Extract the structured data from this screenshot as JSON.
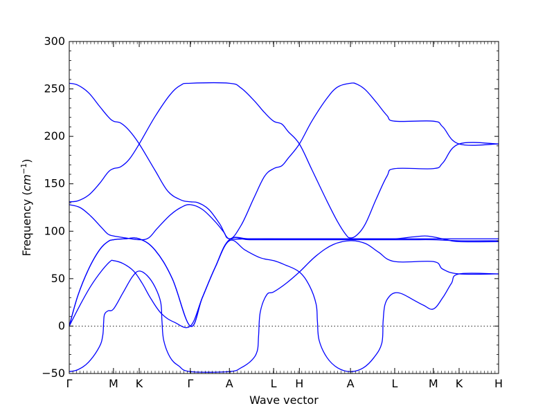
{
  "chart_data": {
    "type": "line",
    "title": "",
    "xlabel": "Wave vector",
    "ylabel": "Frequency (cm⁻¹)",
    "ylabel_prefix": "Frequency (",
    "ylabel_unit": "cm",
    "ylabel_exp": "−1",
    "ylabel_suffix": ")",
    "ylim": [
      -50,
      300
    ],
    "xlim": [
      0,
      1
    ],
    "grid": false,
    "legend": "none",
    "line_color": "#0000ff",
    "y_ticks": [
      -50,
      0,
      50,
      100,
      150,
      200,
      250,
      300
    ],
    "x_ticks": [
      {
        "x": 0.0,
        "label": "Γ"
      },
      {
        "x": 0.103,
        "label": "M"
      },
      {
        "x": 0.163,
        "label": "K"
      },
      {
        "x": 0.282,
        "label": "Γ"
      },
      {
        "x": 0.373,
        "label": "A"
      },
      {
        "x": 0.476,
        "label": "L"
      },
      {
        "x": 0.536,
        "label": "H"
      },
      {
        "x": 0.655,
        "label": "A"
      },
      {
        "x": 0.758,
        "label": "L"
      },
      {
        "x": 0.848,
        "label": "M"
      },
      {
        "x": 0.908,
        "label": "K"
      },
      {
        "x": 1.0,
        "label": "H"
      }
    ],
    "series": [
      {
        "values": [
          [
            0,
            -48
          ],
          [
            0.02,
            -46
          ],
          [
            0.045,
            -38
          ],
          [
            0.07,
            -22
          ],
          [
            0.078,
            -10
          ],
          [
            0.08,
            3
          ],
          [
            0.082,
            12
          ],
          [
            0.09,
            16
          ],
          [
            0.103,
            18
          ],
          [
            0.125,
            35
          ],
          [
            0.147,
            52
          ],
          [
            0.163,
            58
          ],
          [
            0.182,
            53
          ],
          [
            0.2,
            41
          ],
          [
            0.213,
            25
          ],
          [
            0.216,
            5
          ],
          [
            0.22,
            -15
          ],
          [
            0.235,
            -33
          ],
          [
            0.255,
            -42
          ],
          [
            0.282,
            -48
          ],
          [
            0.373,
            -48
          ],
          [
            0.4,
            -44
          ],
          [
            0.425,
            -36
          ],
          [
            0.438,
            -26
          ],
          [
            0.441,
            -10
          ],
          [
            0.445,
            15
          ],
          [
            0.46,
            33
          ],
          [
            0.476,
            36
          ],
          [
            0.505,
            45
          ],
          [
            0.536,
            57
          ],
          [
            0.575,
            74
          ],
          [
            0.615,
            86
          ],
          [
            0.655,
            90
          ],
          [
            0.69,
            87
          ],
          [
            0.72,
            78
          ],
          [
            0.758,
            68
          ],
          [
            0.848,
            68
          ],
          [
            0.87,
            60
          ],
          [
            0.908,
            55
          ],
          [
            1.0,
            55
          ]
        ]
      },
      {
        "values": [
          [
            0,
            0
          ],
          [
            0.025,
            22
          ],
          [
            0.05,
            42
          ],
          [
            0.075,
            58
          ],
          [
            0.095,
            68
          ],
          [
            0.103,
            69
          ],
          [
            0.125,
            66
          ],
          [
            0.15,
            58
          ],
          [
            0.17,
            45
          ],
          [
            0.19,
            29
          ],
          [
            0.215,
            13
          ],
          [
            0.245,
            4
          ],
          [
            0.282,
            0
          ],
          [
            0.31,
            30
          ],
          [
            0.34,
            62
          ],
          [
            0.373,
            90
          ],
          [
            0.41,
            80
          ],
          [
            0.445,
            72
          ],
          [
            0.476,
            69
          ],
          [
            0.5,
            65
          ],
          [
            0.536,
            57
          ],
          [
            0.56,
            42
          ],
          [
            0.575,
            23
          ],
          [
            0.578,
            5
          ],
          [
            0.582,
            -15
          ],
          [
            0.6,
            -33
          ],
          [
            0.625,
            -44
          ],
          [
            0.655,
            -48
          ],
          [
            0.685,
            -44
          ],
          [
            0.71,
            -33
          ],
          [
            0.728,
            -18
          ],
          [
            0.731,
            5
          ],
          [
            0.735,
            22
          ],
          [
            0.745,
            31
          ],
          [
            0.758,
            35
          ],
          [
            0.775,
            34
          ],
          [
            0.8,
            28
          ],
          [
            0.825,
            22
          ],
          [
            0.848,
            18
          ],
          [
            0.87,
            30
          ],
          [
            0.89,
            45
          ],
          [
            0.908,
            55
          ],
          [
            1.0,
            55
          ]
        ]
      },
      {
        "values": [
          [
            0,
            0
          ],
          [
            0.02,
            32
          ],
          [
            0.045,
            60
          ],
          [
            0.07,
            80
          ],
          [
            0.09,
            89
          ],
          [
            0.103,
            91
          ],
          [
            0.13,
            92
          ],
          [
            0.163,
            92
          ],
          [
            0.2,
            80
          ],
          [
            0.24,
            50
          ],
          [
            0.282,
            0
          ],
          [
            0.31,
            30
          ],
          [
            0.34,
            62
          ],
          [
            0.373,
            91
          ],
          [
            0.42,
            91
          ],
          [
            0.5,
            91
          ],
          [
            0.6,
            91
          ],
          [
            0.7,
            91
          ],
          [
            0.758,
            91
          ],
          [
            0.8,
            91
          ],
          [
            0.848,
            91
          ],
          [
            0.908,
            90
          ],
          [
            1.0,
            90
          ]
        ]
      },
      {
        "values": [
          [
            0,
            0
          ],
          [
            0.02,
            32
          ],
          [
            0.045,
            60
          ],
          [
            0.07,
            80
          ],
          [
            0.09,
            89
          ],
          [
            0.103,
            91
          ],
          [
            0.13,
            92
          ],
          [
            0.163,
            92
          ],
          [
            0.2,
            80
          ],
          [
            0.24,
            50
          ],
          [
            0.282,
            0
          ],
          [
            0.31,
            30
          ],
          [
            0.34,
            62
          ],
          [
            0.373,
            91
          ],
          [
            0.42,
            92
          ],
          [
            0.5,
            92
          ],
          [
            0.6,
            92
          ],
          [
            0.7,
            92
          ],
          [
            0.758,
            92
          ],
          [
            0.8,
            92
          ],
          [
            0.848,
            92
          ],
          [
            0.908,
            92
          ],
          [
            1.0,
            92
          ]
        ]
      },
      {
        "values": [
          [
            0,
            128
          ],
          [
            0.025,
            125
          ],
          [
            0.05,
            116
          ],
          [
            0.075,
            104
          ],
          [
            0.09,
            97
          ],
          [
            0.103,
            95
          ],
          [
            0.13,
            93
          ],
          [
            0.163,
            91
          ],
          [
            0.185,
            93
          ],
          [
            0.205,
            103
          ],
          [
            0.235,
            117
          ],
          [
            0.26,
            125
          ],
          [
            0.282,
            128
          ],
          [
            0.31,
            123
          ],
          [
            0.34,
            110
          ],
          [
            0.36,
            99
          ],
          [
            0.373,
            92
          ],
          [
            0.42,
            92
          ],
          [
            0.5,
            92
          ],
          [
            0.6,
            92
          ],
          [
            0.7,
            92
          ],
          [
            0.758,
            92
          ],
          [
            0.8,
            94
          ],
          [
            0.828,
            95
          ],
          [
            0.848,
            94
          ],
          [
            0.88,
            91
          ],
          [
            0.908,
            89
          ],
          [
            1.0,
            89
          ]
        ]
      },
      {
        "values": [
          [
            0,
            131
          ],
          [
            0.02,
            132
          ],
          [
            0.045,
            138
          ],
          [
            0.07,
            150
          ],
          [
            0.09,
            162
          ],
          [
            0.103,
            166
          ],
          [
            0.12,
            168
          ],
          [
            0.14,
            176
          ],
          [
            0.163,
            192
          ],
          [
            0.2,
            221
          ],
          [
            0.235,
            244
          ],
          [
            0.26,
            254
          ],
          [
            0.282,
            256
          ],
          [
            0.373,
            256
          ],
          [
            0.4,
            251
          ],
          [
            0.43,
            238
          ],
          [
            0.455,
            225
          ],
          [
            0.476,
            216
          ],
          [
            0.495,
            213
          ],
          [
            0.51,
            205
          ],
          [
            0.536,
            192
          ],
          [
            0.565,
            165
          ],
          [
            0.6,
            132
          ],
          [
            0.625,
            110
          ],
          [
            0.645,
            96
          ],
          [
            0.655,
            93
          ],
          [
            0.67,
            96
          ],
          [
            0.69,
            108
          ],
          [
            0.715,
            134
          ],
          [
            0.74,
            158
          ],
          [
            0.758,
            166
          ],
          [
            0.848,
            166
          ],
          [
            0.87,
            172
          ],
          [
            0.908,
            192
          ],
          [
            1.0,
            192
          ]
        ]
      },
      {
        "values": [
          [
            0,
            256
          ],
          [
            0.02,
            254
          ],
          [
            0.045,
            246
          ],
          [
            0.07,
            232
          ],
          [
            0.09,
            221
          ],
          [
            0.103,
            216
          ],
          [
            0.12,
            214
          ],
          [
            0.14,
            206
          ],
          [
            0.163,
            192
          ],
          [
            0.2,
            164
          ],
          [
            0.23,
            142
          ],
          [
            0.26,
            133
          ],
          [
            0.282,
            131
          ],
          [
            0.3,
            130
          ],
          [
            0.325,
            123
          ],
          [
            0.35,
            108
          ],
          [
            0.373,
            92
          ],
          [
            0.4,
            106
          ],
          [
            0.43,
            135
          ],
          [
            0.455,
            158
          ],
          [
            0.476,
            166
          ],
          [
            0.495,
            169
          ],
          [
            0.51,
            177
          ],
          [
            0.536,
            192
          ],
          [
            0.565,
            216
          ],
          [
            0.6,
            240
          ],
          [
            0.625,
            252
          ],
          [
            0.655,
            256
          ],
          [
            0.67,
            255
          ],
          [
            0.69,
            249
          ],
          [
            0.715,
            236
          ],
          [
            0.74,
            222
          ],
          [
            0.758,
            216
          ],
          [
            0.848,
            216
          ],
          [
            0.87,
            210
          ],
          [
            0.908,
            192
          ],
          [
            1.0,
            192
          ]
        ]
      }
    ]
  }
}
